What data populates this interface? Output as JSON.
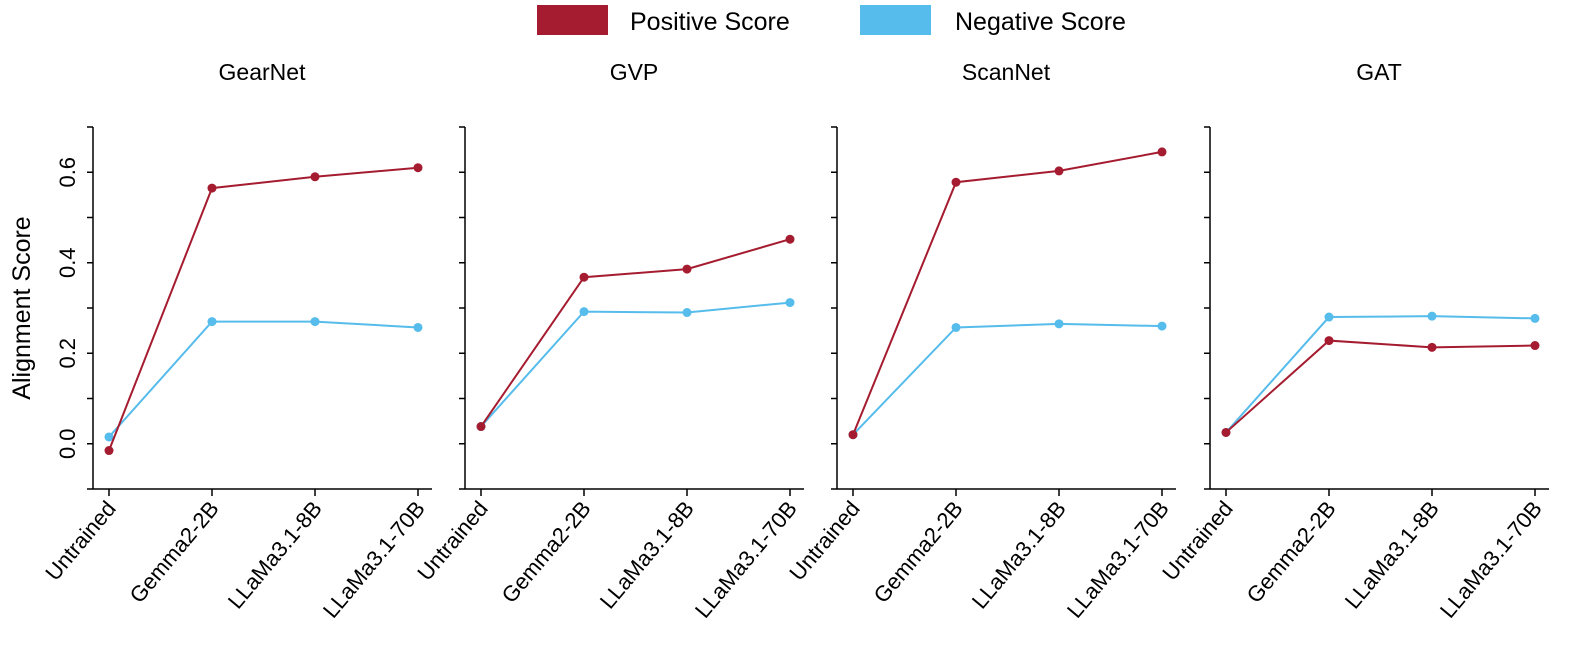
{
  "chart_data": {
    "type": "line",
    "ylabel": "Alignment Score",
    "ylim": [
      -0.1,
      0.7
    ],
    "yticks": [
      0.0,
      0.2,
      0.4,
      0.6
    ],
    "ytick_labels": [
      "0.0",
      "0.2",
      "0.4",
      "0.6"
    ],
    "categories": [
      "Untrained",
      "Gemma2-2B",
      "LLaMa3.1-8B",
      "LLaMa3.1-70B"
    ],
    "legend": {
      "placement": "top-center",
      "entries": [
        {
          "name": "Positive Score",
          "color": "#A51C30"
        },
        {
          "name": "Negative Score",
          "color": "#56BCEB"
        }
      ]
    },
    "panels": [
      {
        "title": "GearNet",
        "series": [
          {
            "name": "Positive Score",
            "color": "#A51C30",
            "values": [
              -0.015,
              0.565,
              0.59,
              0.61
            ]
          },
          {
            "name": "Negative Score",
            "color": "#56BCEB",
            "values": [
              0.015,
              0.27,
              0.27,
              0.257
            ]
          }
        ]
      },
      {
        "title": "GVP",
        "series": [
          {
            "name": "Positive Score",
            "color": "#A51C30",
            "values": [
              0.038,
              0.368,
              0.386,
              0.452
            ]
          },
          {
            "name": "Negative Score",
            "color": "#56BCEB",
            "values": [
              0.038,
              0.292,
              0.29,
              0.312
            ]
          }
        ]
      },
      {
        "title": "ScanNet",
        "series": [
          {
            "name": "Positive Score",
            "color": "#A51C30",
            "values": [
              0.02,
              0.578,
              0.603,
              0.645
            ]
          },
          {
            "name": "Negative Score",
            "color": "#56BCEB",
            "values": [
              0.02,
              0.257,
              0.265,
              0.26
            ]
          }
        ]
      },
      {
        "title": "GAT",
        "series": [
          {
            "name": "Positive Score",
            "color": "#A51C30",
            "values": [
              0.025,
              0.228,
              0.213,
              0.217
            ]
          },
          {
            "name": "Negative Score",
            "color": "#56BCEB",
            "values": [
              0.025,
              0.28,
              0.282,
              0.277
            ]
          }
        ]
      }
    ]
  }
}
